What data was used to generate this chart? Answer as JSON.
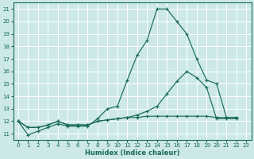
{
  "xlabel": "Humidex (Indice chaleur)",
  "background_color": "#cce8e8",
  "grid_color": "#ffffff",
  "line_color": "#1a6b5a",
  "xlim": [
    -0.5,
    23.5
  ],
  "ylim": [
    10.5,
    21.5
  ],
  "xticks": [
    0,
    1,
    2,
    3,
    4,
    5,
    6,
    7,
    8,
    9,
    10,
    11,
    12,
    13,
    14,
    15,
    16,
    17,
    18,
    19,
    20,
    21,
    22,
    23
  ],
  "yticks": [
    11,
    12,
    13,
    14,
    15,
    16,
    17,
    18,
    19,
    20,
    21
  ],
  "series": [
    {
      "x": [
        0,
        1,
        2,
        3,
        4,
        5,
        6,
        7,
        8,
        9,
        10,
        11,
        12,
        13,
        14,
        15,
        16,
        17,
        18,
        19,
        20,
        21,
        22
      ],
      "y": [
        12.0,
        10.9,
        11.2,
        11.5,
        11.8,
        11.6,
        11.6,
        11.6,
        12.2,
        13.0,
        13.2,
        15.3,
        17.3,
        18.5,
        21.0,
        21.0,
        20.0,
        19.0,
        17.0,
        15.3,
        15.0,
        12.3,
        12.3
      ]
    },
    {
      "x": [
        0,
        1,
        2,
        3,
        4,
        5,
        6,
        7,
        8,
        9,
        10,
        11,
        12,
        13,
        14,
        15,
        16,
        17,
        18,
        19,
        20,
        21,
        22
      ],
      "y": [
        12.0,
        11.5,
        11.5,
        11.7,
        12.0,
        11.7,
        11.7,
        11.7,
        12.0,
        12.1,
        12.2,
        12.3,
        12.5,
        12.8,
        13.2,
        14.2,
        15.2,
        16.0,
        15.5,
        14.7,
        12.2,
        12.2,
        12.2
      ]
    },
    {
      "x": [
        0,
        1,
        2,
        3,
        4,
        5,
        6,
        7,
        8,
        9,
        10,
        11,
        12,
        13,
        14,
        15,
        16,
        17,
        18,
        19,
        20,
        21,
        22
      ],
      "y": [
        12.0,
        11.5,
        11.5,
        11.7,
        12.0,
        11.7,
        11.7,
        11.7,
        12.0,
        12.1,
        12.2,
        12.3,
        12.3,
        12.4,
        12.4,
        12.4,
        12.4,
        12.4,
        12.4,
        12.4,
        12.3,
        12.3,
        12.3
      ]
    }
  ]
}
